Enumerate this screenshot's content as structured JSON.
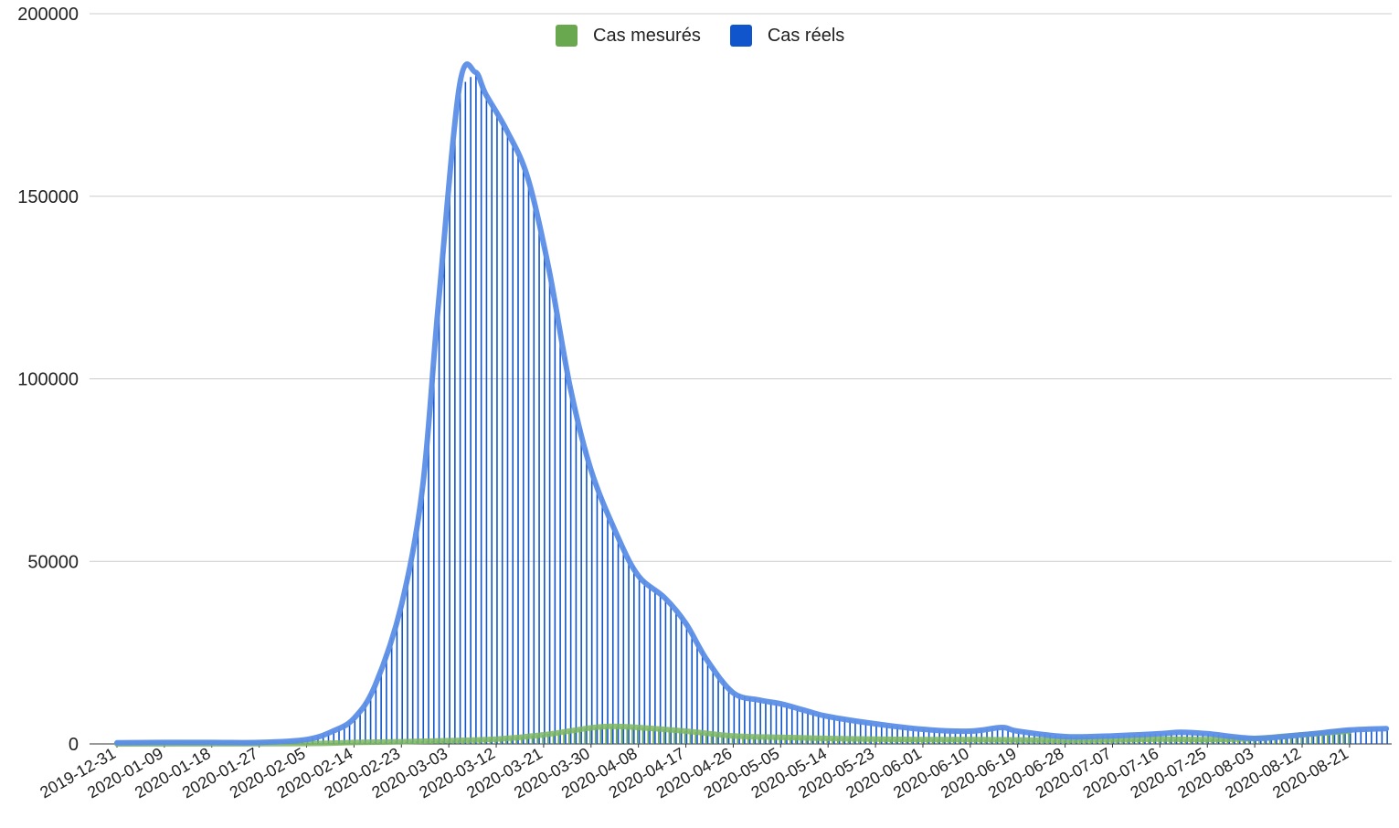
{
  "chart_data": {
    "type": "bar",
    "title": "",
    "xlabel": "",
    "ylabel": "",
    "ylim": [
      0,
      200000
    ],
    "y_ticks": [
      "0",
      "50000",
      "100000",
      "150000",
      "200000"
    ],
    "x_tick_labels": [
      "2019-12-31",
      "2020-01-09",
      "2020-01-18",
      "2020-01-27",
      "2020-02-05",
      "2020-02-14",
      "2020-02-23",
      "2020-03-03",
      "2020-03-12",
      "2020-03-21",
      "2020-03-30",
      "2020-04-08",
      "2020-04-17",
      "2020-04-26",
      "2020-05-05",
      "2020-05-14",
      "2020-05-23",
      "2020-06-01",
      "2020-06-10",
      "2020-06-19",
      "2020-06-28",
      "2020-07-07",
      "2020-07-16",
      "2020-07-25",
      "2020-08-03",
      "2020-08-12",
      "2020-08-21"
    ],
    "grid": true,
    "legend_position": "top",
    "x_start": "2019-12-31",
    "x_end": "2020-08-29",
    "series": [
      {
        "name": "Cas mesurés",
        "color": "#6aa84f",
        "values": [
          {
            "x": "2019-12-31",
            "y": 0
          },
          {
            "x": "2020-02-05",
            "y": 100
          },
          {
            "x": "2020-02-14",
            "y": 400
          },
          {
            "x": "2020-02-23",
            "y": 600
          },
          {
            "x": "2020-03-03",
            "y": 900
          },
          {
            "x": "2020-03-12",
            "y": 1300
          },
          {
            "x": "2020-03-21",
            "y": 2500
          },
          {
            "x": "2020-03-30",
            "y": 4400
          },
          {
            "x": "2020-04-03",
            "y": 4800
          },
          {
            "x": "2020-04-08",
            "y": 4500
          },
          {
            "x": "2020-04-17",
            "y": 3500
          },
          {
            "x": "2020-04-26",
            "y": 2200
          },
          {
            "x": "2020-05-05",
            "y": 1800
          },
          {
            "x": "2020-05-14",
            "y": 1500
          },
          {
            "x": "2020-05-23",
            "y": 1300
          },
          {
            "x": "2020-06-01",
            "y": 1200
          },
          {
            "x": "2020-06-10",
            "y": 1200
          },
          {
            "x": "2020-06-19",
            "y": 1100
          },
          {
            "x": "2020-06-28",
            "y": 1000
          },
          {
            "x": "2020-07-07",
            "y": 1100
          },
          {
            "x": "2020-07-16",
            "y": 1300
          },
          {
            "x": "2020-07-25",
            "y": 1200
          },
          {
            "x": "2020-08-03",
            "y": 1500
          },
          {
            "x": "2020-08-12",
            "y": 2500
          },
          {
            "x": "2020-08-21",
            "y": 3500
          }
        ]
      },
      {
        "name": "Cas réels",
        "color": "#1155cc",
        "values": [
          {
            "x": "2019-12-31",
            "y": 300
          },
          {
            "x": "2020-01-09",
            "y": 400
          },
          {
            "x": "2020-01-18",
            "y": 400
          },
          {
            "x": "2020-01-27",
            "y": 400
          },
          {
            "x": "2020-02-05",
            "y": 1200
          },
          {
            "x": "2020-02-10",
            "y": 3500
          },
          {
            "x": "2020-02-14",
            "y": 7000
          },
          {
            "x": "2020-02-18",
            "y": 16000
          },
          {
            "x": "2020-02-23",
            "y": 38000
          },
          {
            "x": "2020-02-27",
            "y": 70000
          },
          {
            "x": "2020-03-01",
            "y": 120000
          },
          {
            "x": "2020-03-05",
            "y": 180000
          },
          {
            "x": "2020-03-08",
            "y": 184000
          },
          {
            "x": "2020-03-10",
            "y": 178000
          },
          {
            "x": "2020-03-14",
            "y": 168000
          },
          {
            "x": "2020-03-18",
            "y": 155000
          },
          {
            "x": "2020-03-22",
            "y": 130000
          },
          {
            "x": "2020-03-26",
            "y": 98000
          },
          {
            "x": "2020-03-30",
            "y": 75000
          },
          {
            "x": "2020-04-04",
            "y": 57000
          },
          {
            "x": "2020-04-08",
            "y": 46000
          },
          {
            "x": "2020-04-13",
            "y": 40000
          },
          {
            "x": "2020-04-17",
            "y": 33000
          },
          {
            "x": "2020-04-21",
            "y": 23000
          },
          {
            "x": "2020-04-26",
            "y": 14000
          },
          {
            "x": "2020-05-01",
            "y": 12000
          },
          {
            "x": "2020-05-05",
            "y": 11000
          },
          {
            "x": "2020-05-10",
            "y": 9000
          },
          {
            "x": "2020-05-14",
            "y": 7500
          },
          {
            "x": "2020-05-23",
            "y": 5500
          },
          {
            "x": "2020-06-01",
            "y": 4000
          },
          {
            "x": "2020-06-10",
            "y": 3500
          },
          {
            "x": "2020-06-16",
            "y": 4500
          },
          {
            "x": "2020-06-19",
            "y": 3500
          },
          {
            "x": "2020-06-28",
            "y": 2000
          },
          {
            "x": "2020-07-07",
            "y": 2200
          },
          {
            "x": "2020-07-16",
            "y": 2800
          },
          {
            "x": "2020-07-20",
            "y": 3200
          },
          {
            "x": "2020-07-25",
            "y": 2800
          },
          {
            "x": "2020-08-03",
            "y": 1500
          },
          {
            "x": "2020-08-12",
            "y": 2500
          },
          {
            "x": "2020-08-21",
            "y": 3800
          },
          {
            "x": "2020-08-28",
            "y": 4200
          }
        ]
      }
    ]
  }
}
